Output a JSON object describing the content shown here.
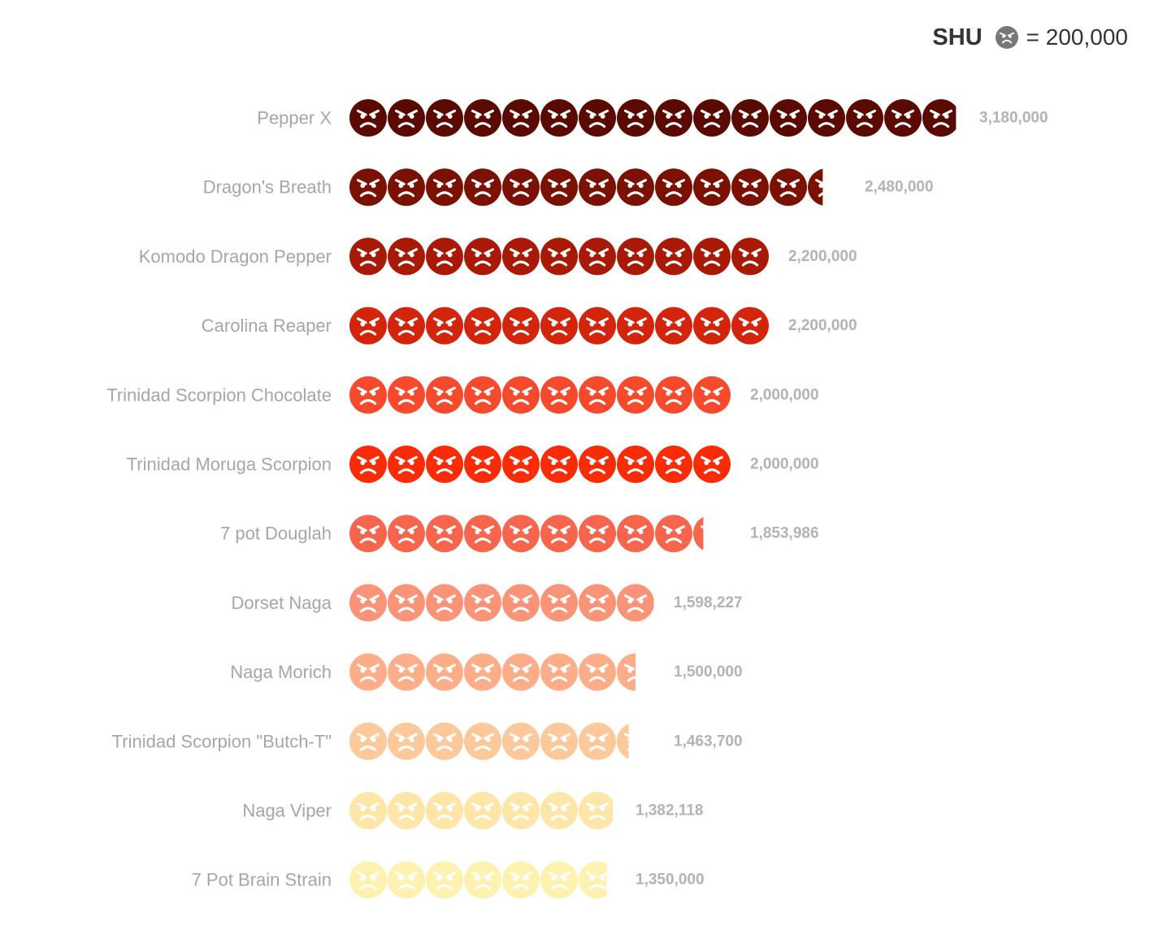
{
  "legend": {
    "unit_label": "SHU",
    "equals_label": "= 200,000",
    "icon": "angry-face-icon",
    "icon_color": "#777777"
  },
  "chart_data": {
    "type": "bar",
    "orientation": "horizontal",
    "unit_value": 200000,
    "icon": "angry-face-icon",
    "categories": [
      "Pepper X",
      "Dragon's Breath",
      "Komodo Dragon Pepper",
      "Carolina Reaper",
      "Trinidad Scorpion Chocolate",
      "Trinidad Moruga Scorpion",
      "7 pot Douglah",
      "Dorset Naga",
      "Naga Morich",
      "Trinidad Scorpion \"Butch-T\"",
      "Naga Viper",
      "7 Pot Brain Strain"
    ],
    "values": [
      3180000,
      2480000,
      2200000,
      2200000,
      2000000,
      2000000,
      1853986,
      1598227,
      1500000,
      1463700,
      1382118,
      1350000
    ],
    "value_labels": [
      "3,180,000",
      "2,480,000",
      "2,200,000",
      "2,200,000",
      "2,000,000",
      "2,000,000",
      "1,853,986",
      "1,598,227",
      "1,500,000",
      "1,463,700",
      "1,382,118",
      "1,350,000"
    ],
    "colors": [
      "#5b0a02",
      "#7a1102",
      "#a81a06",
      "#d3240c",
      "#f74a2d",
      "#fa2c08",
      "#f8654d",
      "#fb9379",
      "#fdae89",
      "#fec99a",
      "#fee6a8",
      "#fff1b0"
    ]
  }
}
